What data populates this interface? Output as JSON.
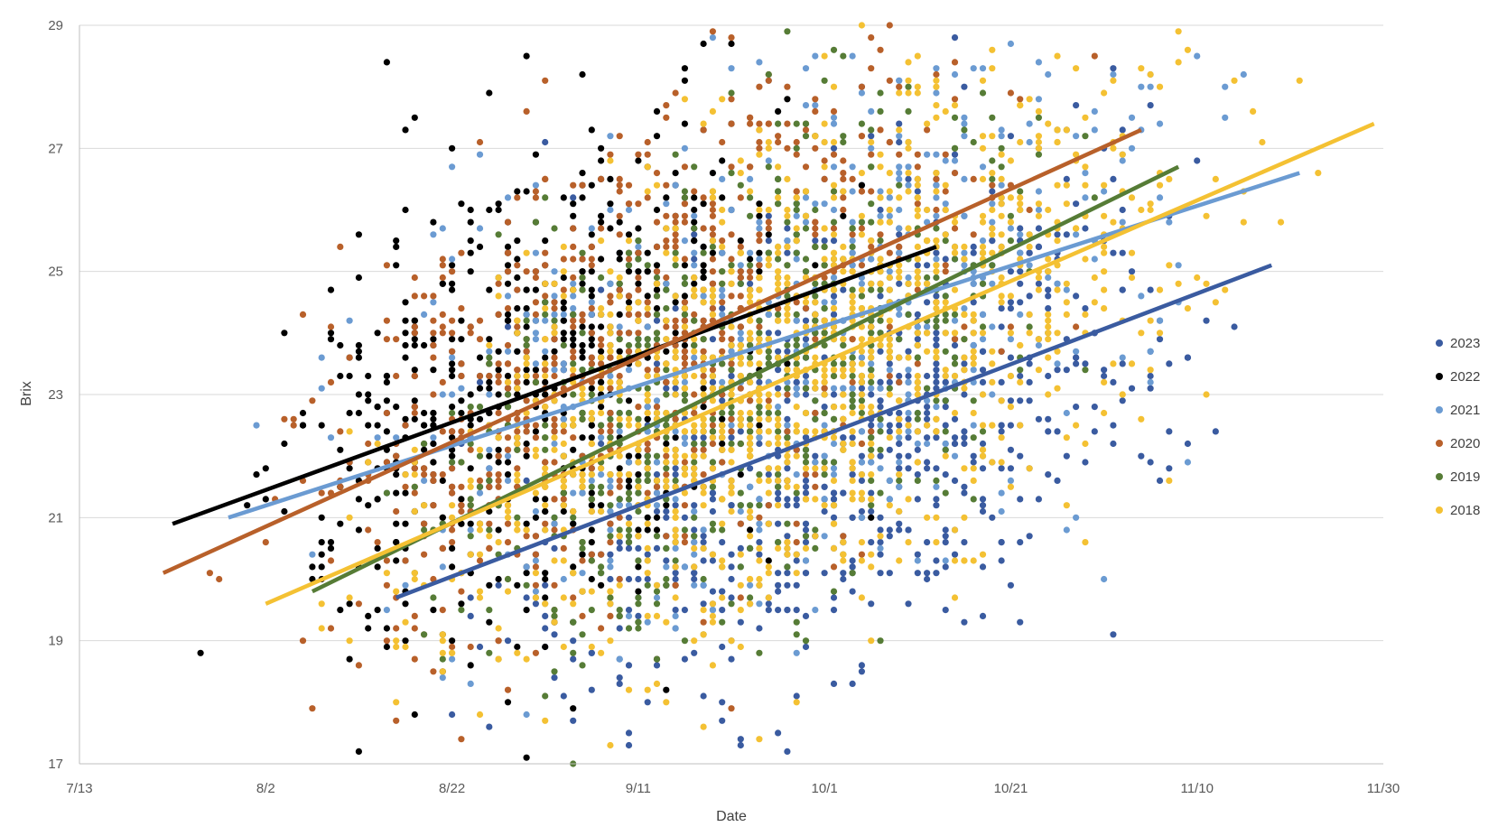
{
  "chart_data": {
    "type": "scatter",
    "title": "",
    "xlabel": "Date",
    "ylabel": "Brix",
    "x_axis_type": "date",
    "x_ticks": [
      "7/13",
      "8/2",
      "8/22",
      "9/11",
      "10/1",
      "10/21",
      "11/10",
      "11/30"
    ],
    "y_ticks": [
      "17",
      "19",
      "21",
      "23",
      "25",
      "27",
      "29"
    ],
    "xlim": [
      "2018-07-13",
      "2018-11-30"
    ],
    "ylim": [
      17,
      29
    ],
    "grid": "horizontal",
    "legend_position": "right",
    "trendlines": true,
    "series": [
      {
        "name": "2023",
        "color": "#3a5ba0",
        "point_count": 900,
        "x_range": [
          "2018-08-16",
          "2018-11-18"
        ],
        "trend_start": [
          "2018-08-16",
          19.7
        ],
        "trend_end": [
          "2018-11-18",
          25.1
        ]
      },
      {
        "name": "2022",
        "color": "#000000",
        "point_count": 700,
        "x_range": [
          "2018-07-23",
          "2018-10-13"
        ],
        "trend_start": [
          "2018-07-23",
          20.9
        ],
        "trend_end": [
          "2018-10-13",
          25.4
        ]
      },
      {
        "name": "2021",
        "color": "#6b9bd2",
        "point_count": 700,
        "x_range": [
          "2018-07-29",
          "2018-11-21"
        ],
        "trend_start": [
          "2018-07-29",
          21.0
        ],
        "trend_end": [
          "2018-11-21",
          26.6
        ]
      },
      {
        "name": "2020",
        "color": "#b8602a",
        "point_count": 800,
        "x_range": [
          "2018-07-22",
          "2018-11-04"
        ],
        "trend_start": [
          "2018-07-22",
          20.1
        ],
        "trend_end": [
          "2018-11-04",
          27.3
        ]
      },
      {
        "name": "2019",
        "color": "#567c36",
        "point_count": 600,
        "x_range": [
          "2018-08-07",
          "2018-11-08"
        ],
        "trend_start": [
          "2018-08-07",
          19.8
        ],
        "trend_end": [
          "2018-11-08",
          26.7
        ]
      },
      {
        "name": "2018",
        "color": "#f4c133",
        "point_count": 1100,
        "x_range": [
          "2018-08-02",
          "2018-11-29"
        ],
        "trend_start": [
          "2018-08-02",
          19.6
        ],
        "trend_end": [
          "2018-11-29",
          27.4
        ]
      }
    ]
  }
}
